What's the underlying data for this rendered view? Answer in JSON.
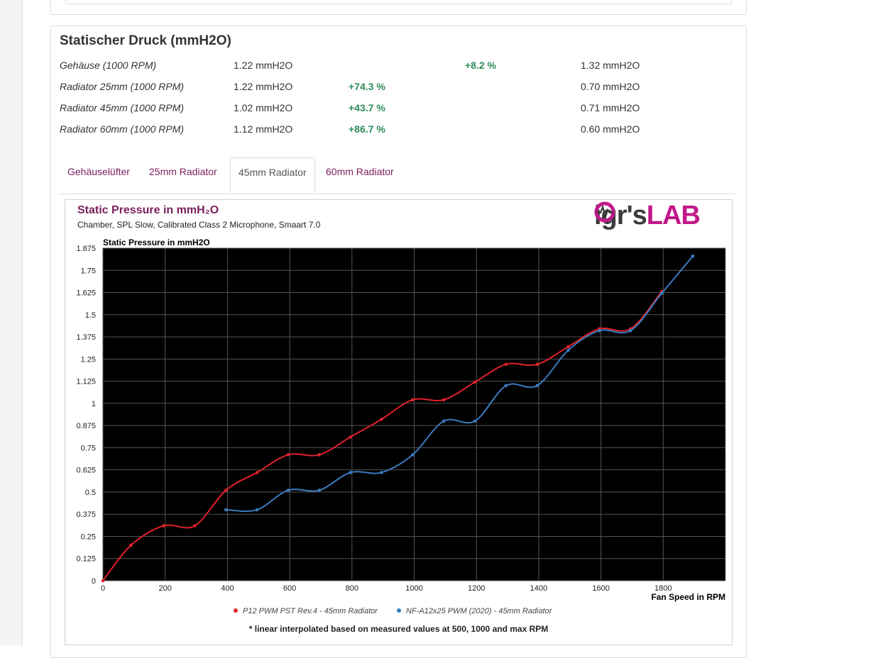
{
  "section": {
    "title": "Statischer Druck (mmH2O)",
    "rows": [
      {
        "label": "Gehäuse (1000 RPM)",
        "value1": "1.22 mmH2O",
        "percent": "+8.2 %",
        "value2": "1.32 mmH2O",
        "percent_col": 2
      },
      {
        "label": "Radiator 25mm (1000 RPM)",
        "value1": "1.22 mmH2O",
        "percent": "+74.3 %",
        "value2": "0.70 mmH2O",
        "percent_col": 1
      },
      {
        "label": "Radiator 45mm (1000 RPM)",
        "value1": "1.02 mmH2O",
        "percent": "+43.7 %",
        "value2": "0.71 mmH2O",
        "percent_col": 1
      },
      {
        "label": "Radiator 60mm (1000 RPM)",
        "value1": "1.12 mmH2O",
        "percent": "+86.7 %",
        "value2": "0.60 mmH2O",
        "percent_col": 1
      }
    ]
  },
  "tabs": [
    {
      "label": "Gehäuselüfter",
      "active": false
    },
    {
      "label": "25mm Radiator",
      "active": false
    },
    {
      "label": "45mm Radiator",
      "active": true
    },
    {
      "label": "60mm Radiator",
      "active": false
    }
  ],
  "logo": {
    "part1": "ig",
    "part2": "r's",
    "part3": "LAB"
  },
  "colors": {
    "accent": "#7a1f5c",
    "positive": "#2e8b57",
    "series_red": "#e0212a",
    "series_blue": "#3b7bbf",
    "logo_pink": "#c2188a"
  },
  "chart_data": {
    "type": "line",
    "title": "Static Pressure in mmH₂O",
    "subtitle": "Chamber, SPL Slow, Calibrated Class 2 Microphone, Smaart 7.0",
    "ylabel": "Static Pressure in mmH2O",
    "xlabel": "Fan Speed in RPM",
    "xlim": [
      0,
      2000
    ],
    "ylim": [
      0,
      1.875
    ],
    "x_ticks": [
      0,
      200,
      400,
      600,
      800,
      1000,
      1200,
      1400,
      1600,
      1800
    ],
    "y_ticks": [
      0,
      0.125,
      0.25,
      0.375,
      0.5,
      0.625,
      0.75,
      0.875,
      1,
      1.125,
      1.25,
      1.375,
      1.5,
      1.625,
      1.75,
      1.875
    ],
    "y_tick_labels": [
      "0",
      "0.125",
      "0.25",
      "0.375",
      "0.5",
      "0.625",
      "0.75",
      "0.875",
      "1",
      "1.125",
      "1.25",
      "1.375",
      "1.5",
      "1.625",
      "1.75",
      "1.875"
    ],
    "background": "black",
    "grid": true,
    "legend_position": "bottom",
    "series": [
      {
        "name": "P12 PWM PST Rev.4 - 45mm Radiator",
        "color": "#e0212a",
        "x": [
          0,
          90,
          195,
          295,
          395,
          495,
          595,
          695,
          795,
          895,
          995,
          1095,
          1195,
          1295,
          1395,
          1495,
          1595,
          1695,
          1795
        ],
        "y": [
          0,
          0.2,
          0.31,
          0.31,
          0.51,
          0.61,
          0.71,
          0.71,
          0.81,
          0.91,
          1.02,
          1.02,
          1.12,
          1.22,
          1.22,
          1.32,
          1.42,
          1.42,
          1.63
        ]
      },
      {
        "name": "NF-A12x25 PWM (2020) - 45mm Radiator",
        "color": "#3b7bbf",
        "x": [
          395,
          495,
          595,
          695,
          795,
          895,
          995,
          1095,
          1195,
          1295,
          1395,
          1495,
          1595,
          1695,
          1795,
          1895
        ],
        "y": [
          0.4,
          0.4,
          0.51,
          0.51,
          0.61,
          0.61,
          0.71,
          0.9,
          0.9,
          1.1,
          1.1,
          1.3,
          1.41,
          1.41,
          1.62,
          1.83
        ]
      }
    ],
    "footnote": "* linear interpolated based on measured values at 500, 1000 and max RPM"
  }
}
